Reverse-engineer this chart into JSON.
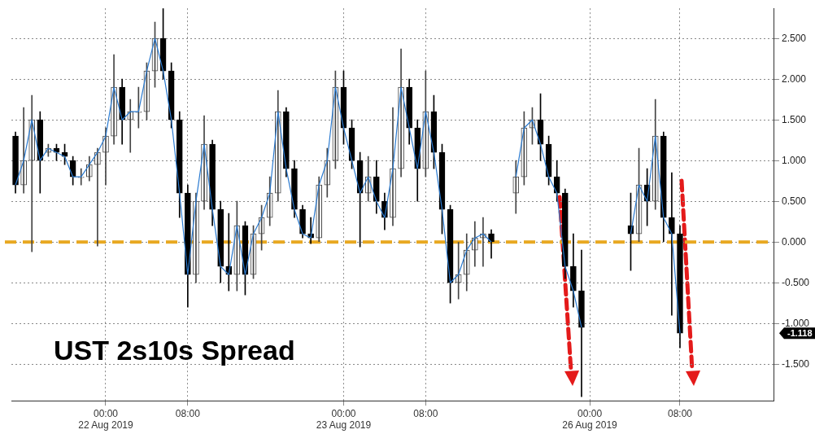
{
  "chart_data": {
    "type": "candlestick",
    "title": "UST 2s10s Spread",
    "categories": [
      null,
      null,
      null,
      null,
      null,
      null,
      null,
      null,
      null,
      null,
      null,
      "00:00\n22 Aug 2019",
      null,
      null,
      null,
      null,
      null,
      null,
      null,
      null,
      null,
      "08:00",
      null,
      null,
      null,
      null,
      null,
      null,
      null,
      null,
      null,
      null,
      null,
      null,
      null,
      null,
      null,
      null,
      null,
      null,
      "00:00\n23 Aug 2019",
      null,
      null,
      null,
      null,
      null,
      null,
      null,
      null,
      null,
      "08:00",
      null,
      null,
      null,
      null,
      null,
      null,
      null,
      null,
      null,
      null,
      null,
      null,
      null,
      null,
      null,
      null,
      null,
      null,
      null,
      "00:00\n26 Aug 2019",
      null,
      null,
      null,
      null,
      null,
      null,
      null,
      null,
      null,
      null,
      "08:00",
      null,
      null,
      null,
      null,
      null,
      null,
      null,
      null,
      null,
      null,
      null
    ],
    "ohlc": [
      [
        1.3,
        1.35,
        0.6,
        0.7
      ],
      [
        0.7,
        1.65,
        0.6,
        1.0
      ],
      [
        1.0,
        1.8,
        -0.12,
        1.5
      ],
      [
        1.5,
        1.6,
        0.6,
        1.0
      ],
      [
        1.1,
        1.2,
        1.05,
        1.15
      ],
      [
        1.15,
        1.2,
        1.0,
        1.1
      ],
      [
        1.1,
        1.2,
        0.95,
        1.05
      ],
      [
        1.0,
        1.05,
        0.7,
        0.8
      ],
      [
        0.8,
        0.9,
        0.7,
        0.8
      ],
      [
        0.8,
        1.05,
        0.75,
        0.95
      ],
      [
        0.95,
        1.15,
        -0.05,
        1.1
      ],
      [
        1.1,
        1.4,
        0.7,
        1.3
      ],
      [
        1.3,
        2.3,
        1.2,
        1.9
      ],
      [
        1.9,
        2.0,
        1.2,
        1.5
      ],
      [
        1.5,
        1.75,
        1.1,
        1.6
      ],
      [
        1.6,
        1.9,
        1.4,
        1.6
      ],
      [
        1.6,
        2.2,
        1.5,
        2.1
      ],
      [
        2.1,
        2.7,
        1.9,
        2.5
      ],
      [
        2.5,
        2.87,
        2.0,
        2.1
      ],
      [
        2.1,
        2.2,
        1.4,
        1.5
      ],
      [
        1.5,
        1.6,
        0.3,
        0.6
      ],
      [
        0.6,
        0.7,
        -0.8,
        -0.4
      ],
      [
        -0.4,
        0.6,
        -0.5,
        0.5
      ],
      [
        0.5,
        1.55,
        0.4,
        1.2
      ],
      [
        1.2,
        1.25,
        0.2,
        0.4
      ],
      [
        0.4,
        0.5,
        -0.5,
        -0.3
      ],
      [
        -0.3,
        0.35,
        -0.6,
        -0.4
      ],
      [
        -0.4,
        0.5,
        -0.6,
        0.2
      ],
      [
        0.2,
        0.25,
        -0.65,
        -0.4
      ],
      [
        -0.4,
        0.2,
        -0.45,
        0.1
      ],
      [
        0.1,
        0.45,
        -0.1,
        0.3
      ],
      [
        0.3,
        0.8,
        0.2,
        0.6
      ],
      [
        0.6,
        1.86,
        0.5,
        1.6
      ],
      [
        1.6,
        1.65,
        0.8,
        0.9
      ],
      [
        0.9,
        1.0,
        0.3,
        0.4
      ],
      [
        0.4,
        0.45,
        0.05,
        0.1
      ],
      [
        0.1,
        0.3,
        -0.02,
        0.05
      ],
      [
        0.05,
        0.8,
        0.0,
        0.7
      ],
      [
        0.7,
        1.15,
        0.55,
        1.0
      ],
      [
        1.0,
        2.1,
        0.9,
        1.9
      ],
      [
        1.9,
        2.1,
        1.2,
        1.4
      ],
      [
        1.4,
        1.5,
        0.9,
        1.0
      ],
      [
        1.0,
        1.1,
        -0.06,
        0.6
      ],
      [
        0.6,
        1.05,
        0.5,
        0.8
      ],
      [
        0.8,
        1.0,
        0.35,
        0.5
      ],
      [
        0.5,
        0.6,
        0.15,
        0.3
      ],
      [
        0.3,
        1.65,
        0.2,
        0.9
      ],
      [
        0.9,
        2.37,
        0.8,
        1.9
      ],
      [
        1.9,
        2.0,
        1.2,
        1.4
      ],
      [
        1.4,
        1.5,
        0.5,
        0.9
      ],
      [
        0.9,
        2.1,
        0.8,
        1.6
      ],
      [
        1.6,
        1.8,
        0.9,
        1.1
      ],
      [
        1.1,
        1.2,
        0.1,
        0.4
      ],
      [
        0.4,
        0.45,
        -0.75,
        -0.5
      ],
      [
        -0.5,
        0.0,
        -0.7,
        -0.4
      ],
      [
        -0.4,
        0.1,
        -0.6,
        -0.1
      ],
      [
        -0.1,
        0.25,
        -0.3,
        0.05
      ],
      [
        0.05,
        0.3,
        -0.3,
        0.1
      ],
      [
        0.1,
        0.15,
        -0.2,
        0.0
      ],
      null,
      null,
      [
        0.6,
        1.0,
        0.35,
        0.8
      ],
      [
        0.8,
        1.6,
        0.7,
        1.4
      ],
      [
        1.4,
        1.65,
        1.2,
        1.5
      ],
      [
        1.5,
        1.82,
        1.0,
        1.2
      ],
      [
        1.2,
        1.3,
        0.7,
        0.8
      ],
      [
        0.8,
        1.0,
        0.5,
        0.6
      ],
      [
        0.6,
        0.65,
        -0.45,
        -0.3
      ],
      [
        -0.3,
        0.1,
        -0.8,
        -0.6
      ],
      [
        -0.6,
        -0.1,
        -1.9,
        -1.05
      ],
      null,
      null,
      null,
      null,
      null,
      [
        0.2,
        0.6,
        -0.35,
        0.1
      ],
      [
        0.1,
        1.15,
        0.0,
        0.7
      ],
      [
        0.7,
        0.9,
        0.2,
        0.5
      ],
      [
        0.5,
        1.75,
        0.4,
        1.3
      ],
      [
        1.3,
        1.35,
        0.0,
        0.3
      ],
      [
        0.3,
        0.85,
        -0.9,
        0.1
      ],
      [
        0.1,
        0.2,
        -1.3,
        -1.12
      ],
      null,
      null,
      null,
      null,
      null,
      null,
      null,
      null,
      null,
      null,
      null
    ],
    "series": [
      {
        "type": "line",
        "color": "#2a7ad0",
        "values": [
          0.7,
          1.0,
          1.5,
          1.0,
          1.15,
          1.1,
          1.05,
          0.8,
          0.8,
          0.95,
          1.1,
          1.3,
          1.9,
          1.5,
          1.6,
          1.6,
          2.1,
          2.5,
          2.1,
          1.5,
          0.6,
          -0.4,
          0.5,
          1.2,
          0.4,
          -0.3,
          -0.4,
          0.2,
          -0.4,
          0.1,
          0.3,
          0.6,
          1.6,
          0.9,
          0.4,
          0.1,
          0.05,
          0.7,
          1.0,
          1.9,
          1.4,
          1.0,
          0.6,
          0.8,
          0.5,
          0.3,
          0.9,
          1.9,
          1.4,
          0.9,
          1.6,
          1.1,
          0.4,
          -0.5,
          -0.4,
          -0.1,
          0.05,
          0.1,
          0.0,
          null,
          null,
          0.8,
          1.4,
          1.5,
          1.2,
          0.8,
          0.6,
          -0.3,
          -0.6,
          -1.05,
          null,
          null,
          null,
          null,
          null,
          0.1,
          0.7,
          0.5,
          1.3,
          0.3,
          0.1,
          -1.12,
          null,
          null,
          null,
          null,
          null,
          null,
          null,
          null,
          null,
          null,
          null
        ]
      }
    ],
    "ylim": [
      -1.95,
      2.87
    ],
    "yticks": [
      {
        "value": -1.5,
        "label": "-1.500"
      },
      {
        "value": -1,
        "label": "-1.000"
      },
      {
        "value": -0.5,
        "label": "-0.500"
      },
      {
        "value": 0,
        "label": "0.000"
      },
      {
        "value": 0.5,
        "label": "0.500"
      },
      {
        "value": 1,
        "label": "1.000"
      },
      {
        "value": 1.5,
        "label": "1.500"
      },
      {
        "value": 2,
        "label": "2.000"
      },
      {
        "value": 2.5,
        "label": "2.500"
      }
    ],
    "ref_lines": [
      {
        "axis": "y",
        "value": 0,
        "color": "#e8a820",
        "line_style": "dashed"
      }
    ],
    "annotations": [
      "-1.118"
    ],
    "grid": true
  }
}
